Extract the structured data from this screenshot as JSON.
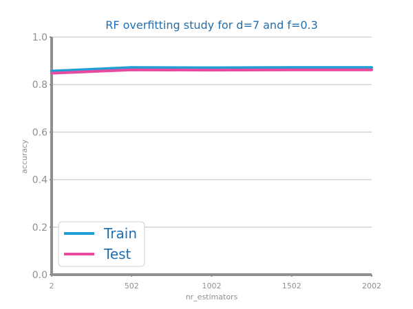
{
  "chart_data": {
    "type": "line",
    "title": "RF overfitting study for d=7 and f=0.3",
    "xlabel": "nr_estimators",
    "ylabel": "accuracy",
    "x": [
      2,
      502,
      1002,
      1502,
      2002
    ],
    "xticks": [
      "2",
      "502",
      "1002",
      "1502",
      "2002"
    ],
    "yticks": [
      "0.0",
      "0.2",
      "0.4",
      "0.6",
      "0.8",
      "1.0"
    ],
    "xlim": [
      2,
      2002
    ],
    "ylim": [
      0.0,
      1.0
    ],
    "grid": "horizontal",
    "legend_position": "lower-left",
    "series": [
      {
        "name": "Train",
        "color": "#1f9fd6",
        "values": [
          0.857,
          0.872,
          0.871,
          0.872,
          0.872
        ]
      },
      {
        "name": "Test",
        "color": "#e84aa0",
        "values": [
          0.848,
          0.862,
          0.861,
          0.862,
          0.862
        ]
      }
    ]
  }
}
